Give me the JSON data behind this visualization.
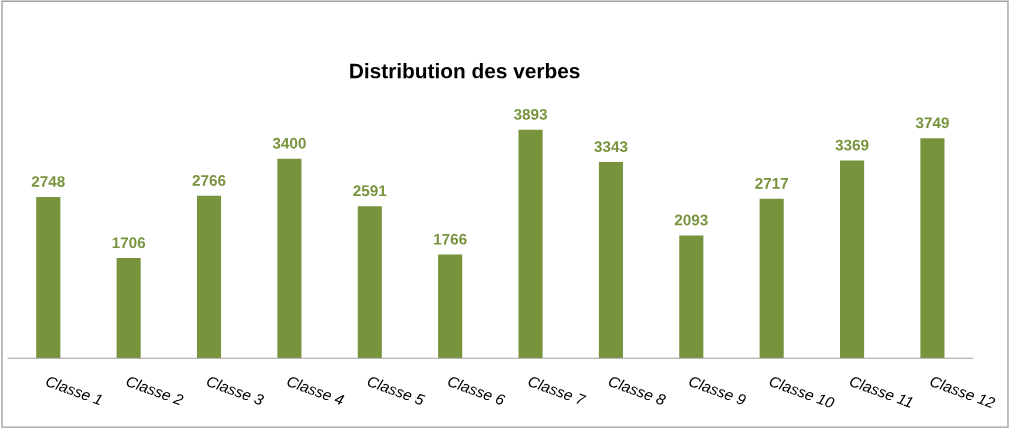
{
  "chart_data": {
    "type": "bar",
    "title": "Distribution des verbes",
    "categories": [
      "Classe 1",
      "Classe 2",
      "Classe 3",
      "Classe 4",
      "Classe 5",
      "Classe 6",
      "Classe 7",
      "Classe 8",
      "Classe 9",
      "Classe 10",
      "Classe 11",
      "Classe 12"
    ],
    "values": [
      2748,
      1706,
      2766,
      3400,
      2591,
      1766,
      3893,
      3343,
      2093,
      2717,
      3369,
      3749
    ],
    "color": "#77933c",
    "data_labels": true,
    "grid": false,
    "legend": false,
    "tick_labels": "x"
  }
}
